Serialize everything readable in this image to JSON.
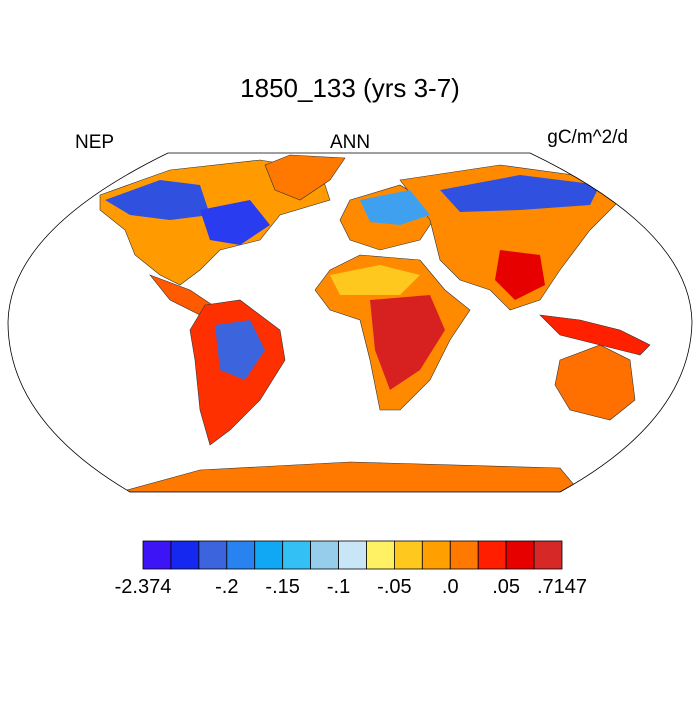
{
  "title": "1850_133 (yrs 3-7)",
  "left_label": "NEP",
  "center_label": "ANN",
  "right_label": "gC/m^2/d",
  "colorbar": {
    "colors": [
      "#3c14f5",
      "#1428f0",
      "#3c64dc",
      "#2882f0",
      "#10a8f5",
      "#32c0f5",
      "#96cdeb",
      "#c8e6f5",
      "#fff064",
      "#ffc81e",
      "#ffa000",
      "#ff7800",
      "#ff1e00",
      "#e60000",
      "#d72828"
    ],
    "labels": [
      "-2.374",
      "-.2",
      "-.15",
      "-.1",
      "-.05",
      ".0",
      ".05",
      ".7147"
    ]
  }
}
